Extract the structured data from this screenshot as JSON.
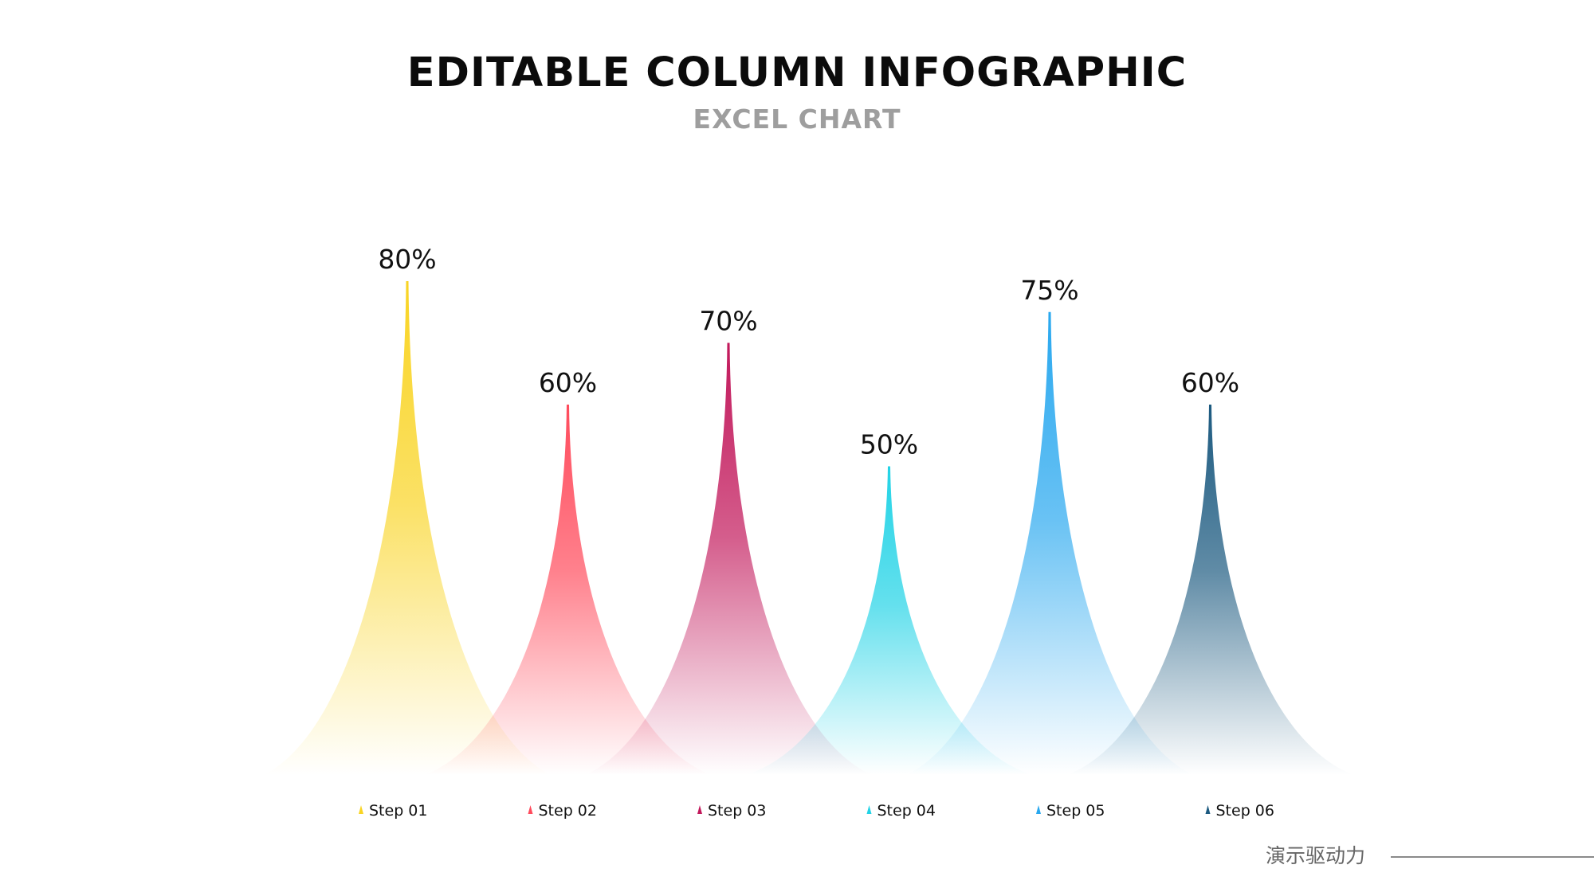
{
  "header": {
    "title": "EDITABLE COLUMN INFOGRAPHIC",
    "subtitle": "EXCEL CHART"
  },
  "footer": {
    "text": "演示驱动力"
  },
  "chart_data": {
    "type": "area",
    "categories": [
      "Step 01",
      "Step 02",
      "Step 03",
      "Step 04",
      "Step 05",
      "Step 06"
    ],
    "values": [
      80,
      60,
      70,
      50,
      75,
      60
    ],
    "data_labels": [
      "80%",
      "60%",
      "70%",
      "50%",
      "75%",
      "60%"
    ],
    "colors": [
      "#f9d423",
      "#ff4b5c",
      "#c2185b",
      "#22d3e6",
      "#29a8ef",
      "#1c5a80"
    ],
    "ylim": [
      0,
      100
    ],
    "grid": false,
    "legend": "bottom"
  }
}
